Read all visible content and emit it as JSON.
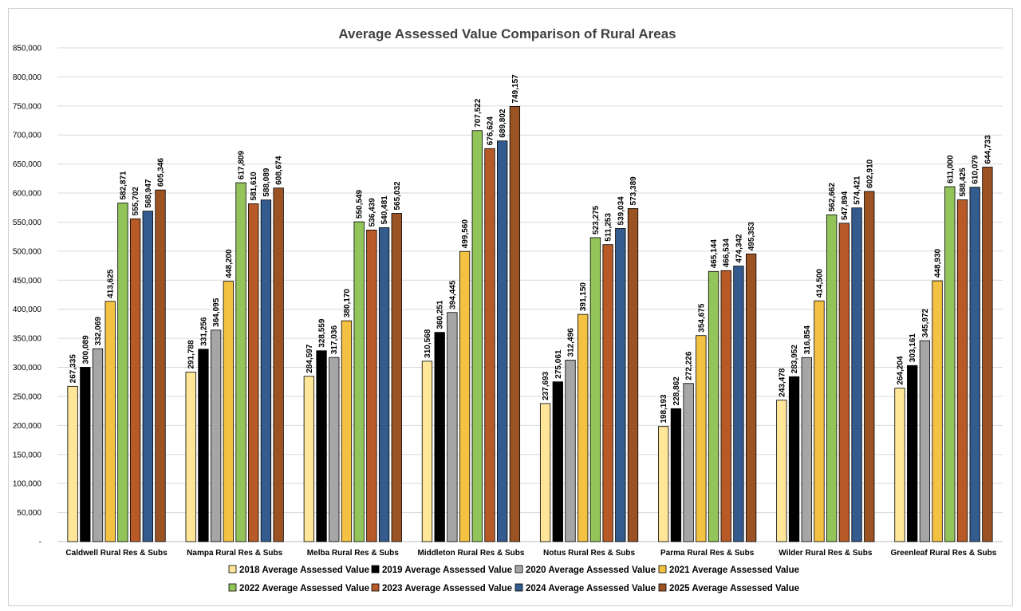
{
  "chart_data": {
    "type": "bar",
    "title": "Average Assessed Value Comparison of Rural Areas",
    "xlabel": "",
    "ylabel": "",
    "ylim": [
      0,
      850000
    ],
    "yticks": [
      "-",
      "50,000",
      "100,000",
      "150,000",
      "200,000",
      "250,000",
      "300,000",
      "350,000",
      "400,000",
      "450,000",
      "500,000",
      "550,000",
      "600,000",
      "650,000",
      "700,000",
      "750,000",
      "800,000",
      "850,000"
    ],
    "grid": true,
    "legend_position": "bottom",
    "categories": [
      "Caldwell Rural Res & Subs",
      "Nampa Rural Res & Subs",
      "Melba Rural Res & Subs",
      "Middleton Rural Res & Subs",
      "Notus Rural Res & Subs",
      "Parma Rural Res & Subs",
      "Wilder Rural Res & Subs",
      "Greenleaf Rural Res & Subs"
    ],
    "series": [
      {
        "name": "2018 Average Assessed Value",
        "color": "#ffe699",
        "values": [
          267335,
          291788,
          284597,
          310568,
          237693,
          198193,
          243478,
          264204
        ],
        "labels": [
          "267,335",
          "291,788",
          "284,597",
          "310,568",
          "237,693",
          "198,193",
          "243,478",
          "264,204"
        ]
      },
      {
        "name": "2019 Average Assessed Value",
        "color": "#000000",
        "values": [
          300089,
          331256,
          328559,
          360251,
          275061,
          228862,
          283952,
          303161
        ],
        "labels": [
          "300,089",
          "331,256",
          "328,559",
          "360,251",
          "275,061",
          "228,862",
          "283,952",
          "303,161"
        ]
      },
      {
        "name": "2020 Average Assessed Value",
        "color": "#a6a6a6",
        "values": [
          332069,
          364095,
          317036,
          394445,
          312496,
          272226,
          316854,
          345972
        ],
        "labels": [
          "332,069",
          "364,095",
          "317,036",
          "394,445",
          "312,496",
          "272,226",
          "316,854",
          "345,972"
        ]
      },
      {
        "name": "2021 Average Assessed Value",
        "color": "#f4c242",
        "values": [
          413625,
          448200,
          380170,
          499560,
          391150,
          354675,
          414500,
          448930
        ],
        "labels": [
          "413,625",
          "448,200",
          "380,170",
          "499,560",
          "391,150",
          "354,675",
          "414,500",
          "448,930"
        ]
      },
      {
        "name": "2022 Average Assessed Value",
        "color": "#92c45a",
        "values": [
          582871,
          617809,
          550549,
          707522,
          523275,
          465144,
          562662,
          611000
        ],
        "labels": [
          "582,871",
          "617,809",
          "550,549",
          "707,522",
          "523,275",
          "465,144",
          "562,662",
          "611,000"
        ]
      },
      {
        "name": "2023 Average Assessed Value",
        "color": "#b85a28",
        "values": [
          555702,
          581610,
          536439,
          676624,
          511253,
          466534,
          547894,
          588425
        ],
        "labels": [
          "555,702",
          "581,610",
          "536,439",
          "676,624",
          "511,253",
          "466,534",
          "547,894",
          "588,425"
        ]
      },
      {
        "name": "2024 Average Assessed Value",
        "color": "#335b8e",
        "values": [
          568947,
          588089,
          540481,
          689802,
          539034,
          474342,
          574421,
          610079
        ],
        "labels": [
          "568,947",
          "588,089",
          "540,481",
          "689,802",
          "539,034",
          "474,342",
          "574,421",
          "610,079"
        ]
      },
      {
        "name": "2025 Average Assessed Value",
        "color": "#9c5324",
        "values": [
          605346,
          608674,
          565032,
          749157,
          573389,
          495353,
          602910,
          644733
        ],
        "labels": [
          "605,346",
          "608,674",
          "565,032",
          "749,157",
          "573,389",
          "495,353",
          "602,910",
          "644,733"
        ]
      }
    ]
  }
}
